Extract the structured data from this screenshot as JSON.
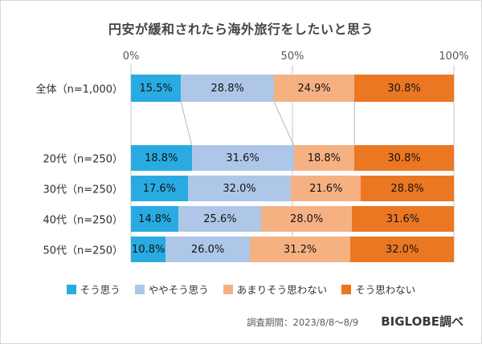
{
  "chart_data": {
    "type": "bar",
    "orientation": "horizontal-stacked",
    "title": "円安が緩和されたら海外旅行をしたいと思う",
    "categories": [
      "全体（n=1,000）",
      "20代（n=250）",
      "30代（n=250）",
      "40代（n=250）",
      "50代（n=250）"
    ],
    "series": [
      {
        "name": "そう思う",
        "color": "#29ABE2",
        "values": [
          15.5,
          18.8,
          17.6,
          14.8,
          10.8
        ]
      },
      {
        "name": "ややそう思う",
        "color": "#AEC7E8",
        "values": [
          28.8,
          31.6,
          32.0,
          25.6,
          26.0
        ]
      },
      {
        "name": "あまりそう思わない",
        "color": "#F6B183",
        "values": [
          24.9,
          18.8,
          21.6,
          28.0,
          31.2
        ]
      },
      {
        "name": "そう思わない",
        "color": "#EB7723",
        "values": [
          30.8,
          30.8,
          28.8,
          31.6,
          32.0
        ]
      }
    ],
    "x_axis_ticks": [
      "0%",
      "50%",
      "100%"
    ],
    "xlim": [
      0,
      100
    ],
    "value_suffix": "%",
    "legend_position": "bottom",
    "grid": true,
    "gridline_color": "#c6c6c6",
    "connector_line_color": "#b8b8b8"
  },
  "footer": {
    "survey_period": "調査期間：2023/8/8～8/9",
    "source": "BIGLOBE調べ"
  }
}
